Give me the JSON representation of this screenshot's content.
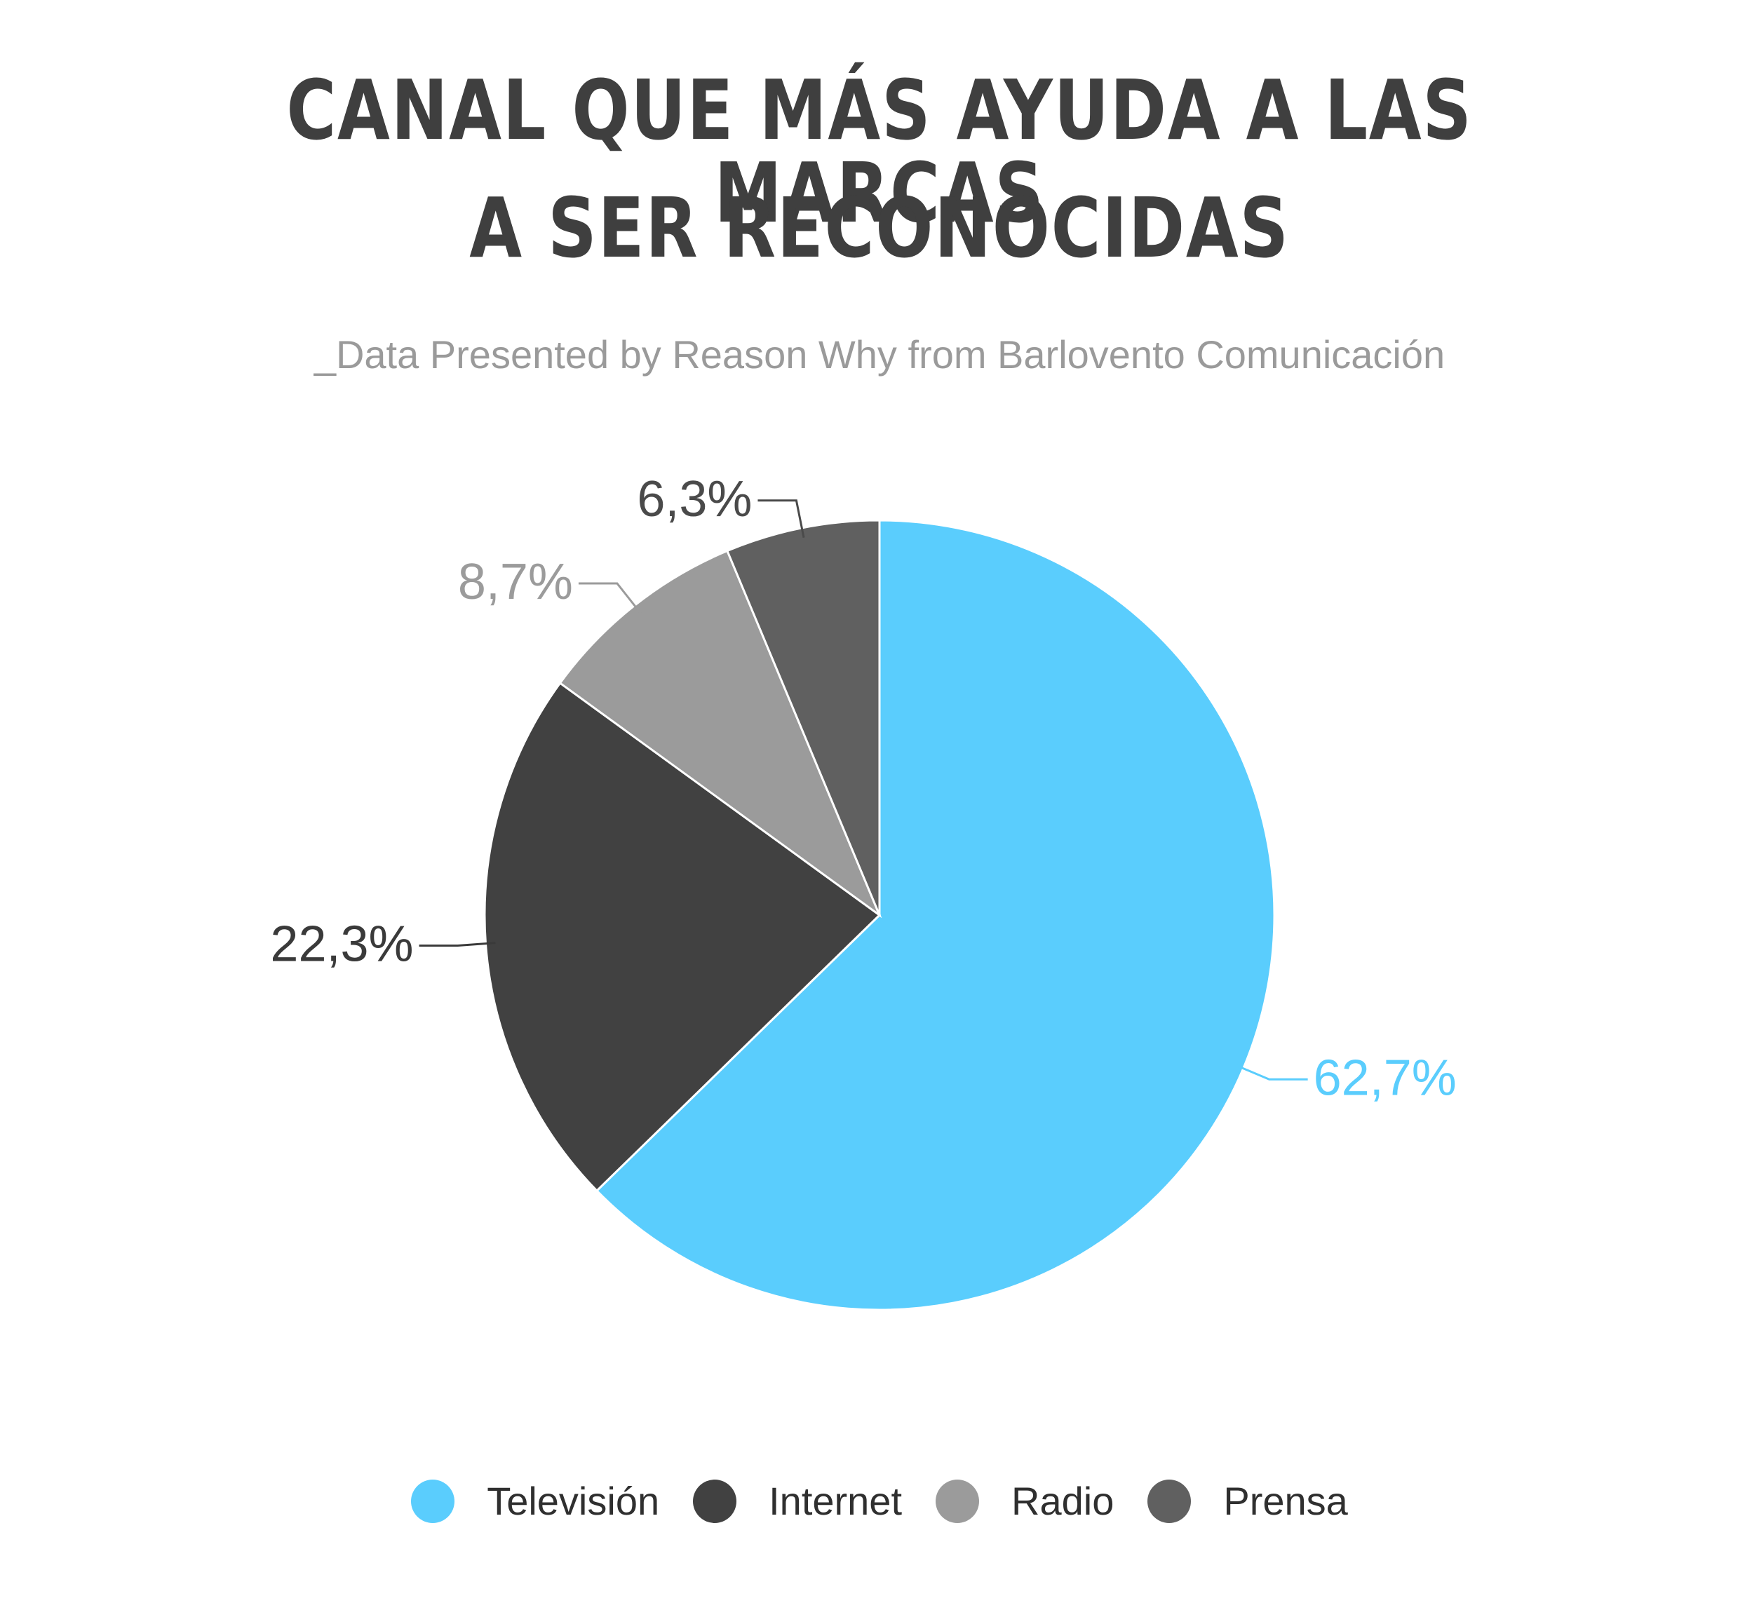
{
  "title_line1": "CANAL QUE MÁS AYUDA A LAS MARCAS",
  "title_line2": "A SER RECONOCIDAS",
  "subtitle": "_Data Presented by Reason Why from Barlovento Comunicación",
  "chart_data": {
    "type": "pie",
    "title": "CANAL QUE MÁS AYUDA A LAS MARCAS A SER RECONOCIDAS",
    "start_angle": "12 o'clock",
    "direction": "clockwise",
    "slices": [
      {
        "name": "Televisión",
        "value": 62.7,
        "label": "62,7%",
        "color": "#5acdfd",
        "label_color": "#5acdfd"
      },
      {
        "name": "Internet",
        "value": 22.3,
        "label": "22,3%",
        "color": "#414141",
        "label_color": "#3a3a3a"
      },
      {
        "name": "Radio",
        "value": 8.7,
        "label": "8,7%",
        "color": "#9b9b9b",
        "label_color": "#9b9b9b"
      },
      {
        "name": "Prensa",
        "value": 6.3,
        "label": "6,3%",
        "color": "#606060",
        "label_color": "#4a4a4a"
      }
    ],
    "legend": {
      "placement": "bottom",
      "entries": [
        "Televisión",
        "Internet",
        "Radio",
        "Prensa"
      ]
    }
  }
}
